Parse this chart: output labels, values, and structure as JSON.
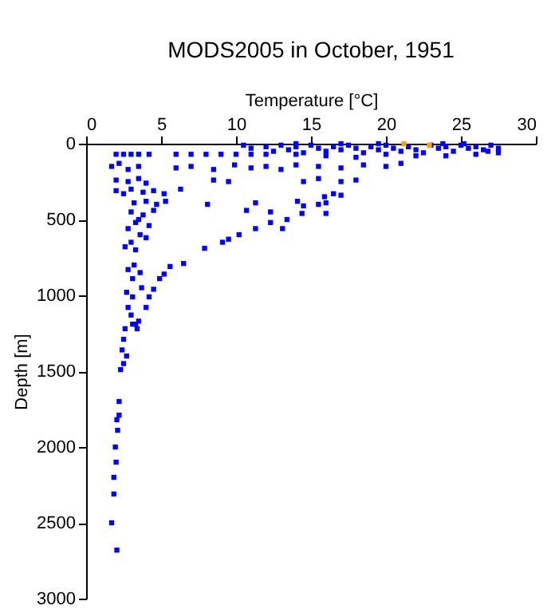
{
  "chart_data": {
    "type": "scatter",
    "title": "MODS2005 in October, 1951",
    "xlabel": "Temperature [°C]",
    "ylabel": "Depth [m]",
    "xlim": [
      0,
      30
    ],
    "xticks": [
      0,
      5,
      10,
      15,
      20,
      25,
      30
    ],
    "ylim": [
      3000,
      0
    ],
    "yticks": [
      0,
      500,
      1000,
      1500,
      2000,
      2500,
      3000
    ],
    "grid": false,
    "marker": "square",
    "series": [
      {
        "color": "#0000ff",
        "x": [
          10.5,
          11,
          12,
          12.5,
          13,
          13.5,
          14,
          14.5,
          15,
          15.5,
          16,
          16.5,
          17,
          17.5,
          18,
          18.5,
          19,
          19.5,
          20,
          20.5,
          21,
          21.5,
          22,
          22.5,
          23,
          23.5,
          24,
          24.5,
          25,
          25.5,
          26,
          26.5,
          27,
          27.5,
          26,
          24,
          22,
          20,
          18,
          16,
          14,
          12,
          27.5,
          26.8,
          25.2,
          23.8,
          19.5,
          17,
          14,
          2,
          2.5,
          3,
          3.5,
          4.2,
          6,
          7,
          8,
          9,
          10,
          11,
          1.7,
          2.2,
          2.8,
          3.5,
          6,
          7,
          8.5,
          9.9,
          11,
          12,
          13,
          14,
          15.5,
          17,
          18.5,
          20,
          21,
          2,
          2.8,
          3.5,
          4,
          8.5,
          9.5,
          14.5,
          15.5,
          17,
          18,
          2,
          2.5,
          3,
          3.8,
          4.5,
          5.2,
          6.3,
          15.9,
          17,
          16.5,
          3.2,
          4,
          4.7,
          5.3,
          8.1,
          11.3,
          14.1,
          14.5,
          15.5,
          16,
          3,
          3.8,
          4.5,
          10.7,
          12.3,
          14.4,
          16,
          13.4,
          3.5,
          3.3,
          4.2,
          12.3,
          13.1,
          11.3,
          2.8,
          3.6,
          4,
          10.2,
          9.5,
          9.1,
          3,
          7.9,
          3.3,
          2.6,
          6.5,
          5.6,
          5.2,
          3.2,
          2.8,
          4.9,
          3.1,
          3.6,
          3.1,
          4.2,
          2.8,
          4,
          3.1,
          3.3,
          4.5,
          3.7,
          2.7,
          2.6,
          3.4,
          3.5,
          3,
          2.5,
          2.4,
          2.7,
          2.3,
          2.5,
          2.2,
          2.2,
          2.05,
          2.1,
          1.95,
          2.0,
          1.85,
          1.85,
          1.7,
          2.05
        ],
        "values": [
          10,
          30,
          20,
          50,
          10,
          40,
          20,
          60,
          10,
          30,
          50,
          20,
          40,
          10,
          30,
          60,
          20,
          40,
          10,
          30,
          50,
          20,
          40,
          60,
          10,
          30,
          20,
          50,
          10,
          30,
          20,
          40,
          10,
          30,
          70,
          80,
          80,
          70,
          90,
          80,
          70,
          70,
          60,
          50,
          0,
          0,
          0,
          0,
          0,
          70,
          70,
          70,
          70,
          70,
          70,
          70,
          70,
          70,
          70,
          70,
          150,
          130,
          170,
          150,
          160,
          150,
          170,
          140,
          160,
          150,
          170,
          140,
          150,
          160,
          140,
          150,
          130,
          240,
          250,
          230,
          260,
          240,
          250,
          250,
          230,
          250,
          240,
          310,
          330,
          300,
          320,
          310,
          330,
          300,
          350,
          340,
          330,
          390,
          380,
          400,
          380,
          400,
          390,
          380,
          410,
          400,
          390,
          450,
          470,
          440,
          440,
          450,
          460,
          460,
          500,
          500,
          520,
          540,
          520,
          560,
          560,
          560,
          600,
          620,
          600,
          630,
          650,
          650,
          690,
          700,
          680,
          790,
          810,
          860,
          800,
          830,
          890,
          890,
          850,
          1010,
          1010,
          1080,
          1080,
          1190,
          1190,
          960,
          950,
          980,
          1220,
          1220,
          1170,
          1130,
          1290,
          1360,
          1400,
          1490,
          1450,
          1700,
          1790,
          1820,
          1890,
          2000,
          2100,
          2200,
          2310,
          2500,
          2680
        ]
      },
      {
        "color": "#ffa500",
        "x": [
          21.2,
          22.9
        ],
        "values": [
          0,
          10
        ]
      }
    ]
  }
}
